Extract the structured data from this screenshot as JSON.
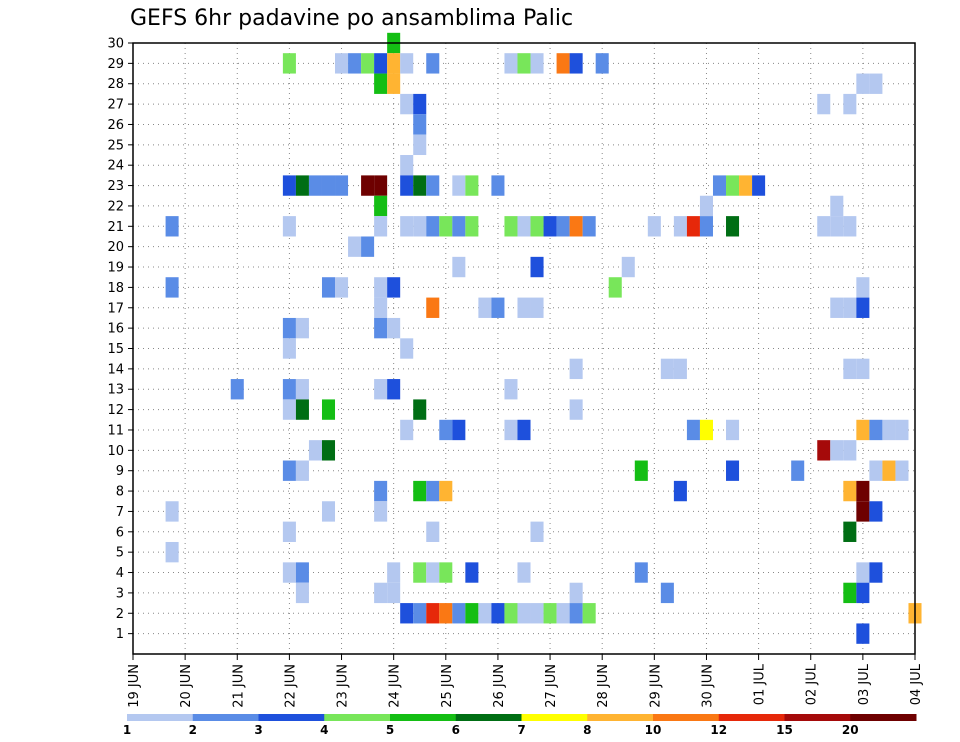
{
  "chart_data": {
    "type": "heatmap",
    "title": "GEFS 6hr padavine po ansamblima Palic",
    "x_tick_labels": [
      "19 JUN",
      "20 JUN",
      "21 JUN",
      "22 JUN",
      "23 JUN",
      "24 JUN",
      "25 JUN",
      "26 JUN",
      "27 JUN",
      "28 JUN",
      "29 JUN",
      "30 JUN",
      "01 JUL",
      "02 JUL",
      "03 JUL",
      "04 JUL"
    ],
    "x_range_days": [
      0,
      15
    ],
    "y_tick_labels": [
      "1",
      "2",
      "3",
      "4",
      "5",
      "6",
      "7",
      "8",
      "9",
      "10",
      "11",
      "12",
      "13",
      "14",
      "15",
      "16",
      "17",
      "18",
      "19",
      "20",
      "21",
      "22",
      "23",
      "24",
      "25",
      "26",
      "27",
      "28",
      "29",
      "30"
    ],
    "y_range": [
      0,
      30
    ],
    "grid": true,
    "legend": {
      "position": "bottom",
      "thresholds": [
        "1",
        "2",
        "3",
        "4",
        "5",
        "6",
        "7",
        "8",
        "10",
        "12",
        "15",
        "20"
      ],
      "colors": [
        "#b4c8f0",
        "#5a8ce6",
        "#1e50dc",
        "#78e65a",
        "#14be14",
        "#006e14",
        "#ffff00",
        "#ffb432",
        "#fa7814",
        "#e6280a",
        "#a50a0a",
        "#6e0000"
      ]
    },
    "colors": {
      "c1": "#b4c8f0",
      "c2": "#5a8ce6",
      "c3": "#1e50dc",
      "c4": "#78e65a",
      "c5": "#14be14",
      "c6": "#006e14",
      "c7": "#ffff00",
      "c8": "#ffb432",
      "c10": "#fa7814",
      "c12": "#e6280a",
      "c15": "#a50a0a",
      "c20": "#6e0000"
    },
    "cells": [
      [
        5.0,
        30,
        "c5"
      ],
      [
        3.0,
        29,
        "c4"
      ],
      [
        4.0,
        29,
        "c1"
      ],
      [
        4.25,
        29,
        "c2"
      ],
      [
        4.5,
        29,
        "c4"
      ],
      [
        4.75,
        29,
        "c3"
      ],
      [
        5.0,
        29,
        "c8"
      ],
      [
        5.25,
        29,
        "c1"
      ],
      [
        5.75,
        29,
        "c2"
      ],
      [
        7.25,
        29,
        "c1"
      ],
      [
        7.5,
        29,
        "c4"
      ],
      [
        7.75,
        29,
        "c1"
      ],
      [
        8.25,
        29,
        "c10"
      ],
      [
        8.5,
        29,
        "c3"
      ],
      [
        9.0,
        29,
        "c2"
      ],
      [
        4.75,
        28,
        "c5"
      ],
      [
        5.0,
        28,
        "c8"
      ],
      [
        14.0,
        28,
        "c1"
      ],
      [
        14.25,
        28,
        "c1"
      ],
      [
        5.25,
        27,
        "c1"
      ],
      [
        5.5,
        27,
        "c3"
      ],
      [
        13.25,
        27,
        "c1"
      ],
      [
        13.75,
        27,
        "c1"
      ],
      [
        5.5,
        26,
        "c2"
      ],
      [
        5.5,
        25,
        "c1"
      ],
      [
        5.25,
        24,
        "c1"
      ],
      [
        3.0,
        23,
        "c3"
      ],
      [
        3.25,
        23,
        "c6"
      ],
      [
        3.5,
        23,
        "c2"
      ],
      [
        3.75,
        23,
        "c2"
      ],
      [
        4.0,
        23,
        "c2"
      ],
      [
        4.5,
        23,
        "c20"
      ],
      [
        4.75,
        23,
        "c20"
      ],
      [
        5.25,
        23,
        "c3"
      ],
      [
        5.5,
        23,
        "c6"
      ],
      [
        5.75,
        23,
        "c2"
      ],
      [
        6.25,
        23,
        "c1"
      ],
      [
        6.5,
        23,
        "c4"
      ],
      [
        7.0,
        23,
        "c2"
      ],
      [
        11.25,
        23,
        "c2"
      ],
      [
        11.5,
        23,
        "c4"
      ],
      [
        11.75,
        23,
        "c8"
      ],
      [
        12.0,
        23,
        "c3"
      ],
      [
        4.75,
        22,
        "c5"
      ],
      [
        11.0,
        22,
        "c1"
      ],
      [
        13.5,
        22,
        "c1"
      ],
      [
        0.75,
        21,
        "c2"
      ],
      [
        3.0,
        21,
        "c1"
      ],
      [
        4.75,
        21,
        "c1"
      ],
      [
        5.25,
        21,
        "c1"
      ],
      [
        5.5,
        21,
        "c1"
      ],
      [
        5.75,
        21,
        "c2"
      ],
      [
        6.0,
        21,
        "c4"
      ],
      [
        6.25,
        21,
        "c2"
      ],
      [
        6.5,
        21,
        "c4"
      ],
      [
        7.25,
        21,
        "c4"
      ],
      [
        7.5,
        21,
        "c1"
      ],
      [
        7.75,
        21,
        "c4"
      ],
      [
        8.0,
        21,
        "c3"
      ],
      [
        8.25,
        21,
        "c2"
      ],
      [
        8.5,
        21,
        "c10"
      ],
      [
        8.75,
        21,
        "c2"
      ],
      [
        10.0,
        21,
        "c1"
      ],
      [
        10.5,
        21,
        "c1"
      ],
      [
        10.75,
        21,
        "c12"
      ],
      [
        11.0,
        21,
        "c2"
      ],
      [
        11.5,
        21,
        "c6"
      ],
      [
        13.25,
        21,
        "c1"
      ],
      [
        13.5,
        21,
        "c1"
      ],
      [
        13.75,
        21,
        "c1"
      ],
      [
        4.25,
        20,
        "c1"
      ],
      [
        4.5,
        20,
        "c2"
      ],
      [
        6.25,
        19,
        "c1"
      ],
      [
        7.75,
        19,
        "c3"
      ],
      [
        9.5,
        19,
        "c1"
      ],
      [
        0.75,
        18,
        "c2"
      ],
      [
        3.75,
        18,
        "c2"
      ],
      [
        4.0,
        18,
        "c1"
      ],
      [
        4.75,
        18,
        "c1"
      ],
      [
        5.0,
        18,
        "c3"
      ],
      [
        9.25,
        18,
        "c4"
      ],
      [
        14.0,
        18,
        "c1"
      ],
      [
        4.75,
        17,
        "c1"
      ],
      [
        5.75,
        17,
        "c10"
      ],
      [
        6.75,
        17,
        "c1"
      ],
      [
        7.0,
        17,
        "c2"
      ],
      [
        7.5,
        17,
        "c1"
      ],
      [
        7.75,
        17,
        "c1"
      ],
      [
        13.5,
        17,
        "c1"
      ],
      [
        13.75,
        17,
        "c1"
      ],
      [
        14.0,
        17,
        "c3"
      ],
      [
        3.0,
        16,
        "c2"
      ],
      [
        3.25,
        16,
        "c1"
      ],
      [
        4.75,
        16,
        "c2"
      ],
      [
        5.0,
        16,
        "c1"
      ],
      [
        3.0,
        15,
        "c1"
      ],
      [
        5.25,
        15,
        "c1"
      ],
      [
        8.5,
        14,
        "c1"
      ],
      [
        10.25,
        14,
        "c1"
      ],
      [
        10.5,
        14,
        "c1"
      ],
      [
        13.75,
        14,
        "c1"
      ],
      [
        14.0,
        14,
        "c1"
      ],
      [
        2.0,
        13,
        "c2"
      ],
      [
        3.0,
        13,
        "c2"
      ],
      [
        3.25,
        13,
        "c1"
      ],
      [
        4.75,
        13,
        "c1"
      ],
      [
        5.0,
        13,
        "c3"
      ],
      [
        7.25,
        13,
        "c1"
      ],
      [
        3.0,
        12,
        "c1"
      ],
      [
        3.25,
        12,
        "c6"
      ],
      [
        3.75,
        12,
        "c5"
      ],
      [
        5.5,
        12,
        "c6"
      ],
      [
        8.5,
        12,
        "c1"
      ],
      [
        5.25,
        11,
        "c1"
      ],
      [
        6.0,
        11,
        "c2"
      ],
      [
        6.25,
        11,
        "c3"
      ],
      [
        7.25,
        11,
        "c1"
      ],
      [
        7.5,
        11,
        "c3"
      ],
      [
        10.75,
        11,
        "c2"
      ],
      [
        11.0,
        11,
        "c7"
      ],
      [
        11.5,
        11,
        "c1"
      ],
      [
        14.0,
        11,
        "c8"
      ],
      [
        14.25,
        11,
        "c2"
      ],
      [
        14.5,
        11,
        "c1"
      ],
      [
        14.75,
        11,
        "c1"
      ],
      [
        3.5,
        10,
        "c1"
      ],
      [
        3.75,
        10,
        "c6"
      ],
      [
        13.25,
        10,
        "c15"
      ],
      [
        13.5,
        10,
        "c1"
      ],
      [
        13.75,
        10,
        "c1"
      ],
      [
        3.0,
        9,
        "c2"
      ],
      [
        3.25,
        9,
        "c1"
      ],
      [
        9.75,
        9,
        "c5"
      ],
      [
        11.5,
        9,
        "c3"
      ],
      [
        12.75,
        9,
        "c2"
      ],
      [
        14.25,
        9,
        "c1"
      ],
      [
        14.5,
        9,
        "c8"
      ],
      [
        14.75,
        9,
        "c1"
      ],
      [
        4.75,
        8,
        "c2"
      ],
      [
        5.5,
        8,
        "c5"
      ],
      [
        5.75,
        8,
        "c2"
      ],
      [
        6.0,
        8,
        "c8"
      ],
      [
        10.5,
        8,
        "c3"
      ],
      [
        13.75,
        8,
        "c8"
      ],
      [
        14.0,
        8,
        "c20"
      ],
      [
        0.75,
        7,
        "c1"
      ],
      [
        3.75,
        7,
        "c1"
      ],
      [
        4.75,
        7,
        "c1"
      ],
      [
        14.0,
        7,
        "c20"
      ],
      [
        14.25,
        7,
        "c3"
      ],
      [
        3.0,
        6,
        "c1"
      ],
      [
        5.75,
        6,
        "c1"
      ],
      [
        7.75,
        6,
        "c1"
      ],
      [
        13.75,
        6,
        "c6"
      ],
      [
        0.75,
        5,
        "c1"
      ],
      [
        3.0,
        4,
        "c1"
      ],
      [
        3.25,
        4,
        "c2"
      ],
      [
        5.0,
        4,
        "c1"
      ],
      [
        5.5,
        4,
        "c4"
      ],
      [
        5.75,
        4,
        "c1"
      ],
      [
        6.0,
        4,
        "c4"
      ],
      [
        6.5,
        4,
        "c3"
      ],
      [
        7.5,
        4,
        "c1"
      ],
      [
        9.75,
        4,
        "c2"
      ],
      [
        14.0,
        4,
        "c1"
      ],
      [
        14.25,
        4,
        "c3"
      ],
      [
        3.25,
        3,
        "c1"
      ],
      [
        4.75,
        3,
        "c1"
      ],
      [
        5.0,
        3,
        "c1"
      ],
      [
        8.5,
        3,
        "c1"
      ],
      [
        10.25,
        3,
        "c2"
      ],
      [
        13.75,
        3,
        "c5"
      ],
      [
        14.0,
        3,
        "c3"
      ],
      [
        5.25,
        2,
        "c3"
      ],
      [
        5.5,
        2,
        "c2"
      ],
      [
        5.75,
        2,
        "c12"
      ],
      [
        6.0,
        2,
        "c10"
      ],
      [
        6.25,
        2,
        "c2"
      ],
      [
        6.5,
        2,
        "c5"
      ],
      [
        6.75,
        2,
        "c1"
      ],
      [
        7.0,
        2,
        "c3"
      ],
      [
        7.25,
        2,
        "c4"
      ],
      [
        7.5,
        2,
        "c1"
      ],
      [
        7.75,
        2,
        "c1"
      ],
      [
        8.0,
        2,
        "c4"
      ],
      [
        8.25,
        2,
        "c1"
      ],
      [
        8.5,
        2,
        "c2"
      ],
      [
        8.75,
        2,
        "c4"
      ],
      [
        15.0,
        2,
        "c8"
      ],
      [
        14.0,
        1,
        "c3"
      ]
    ]
  }
}
